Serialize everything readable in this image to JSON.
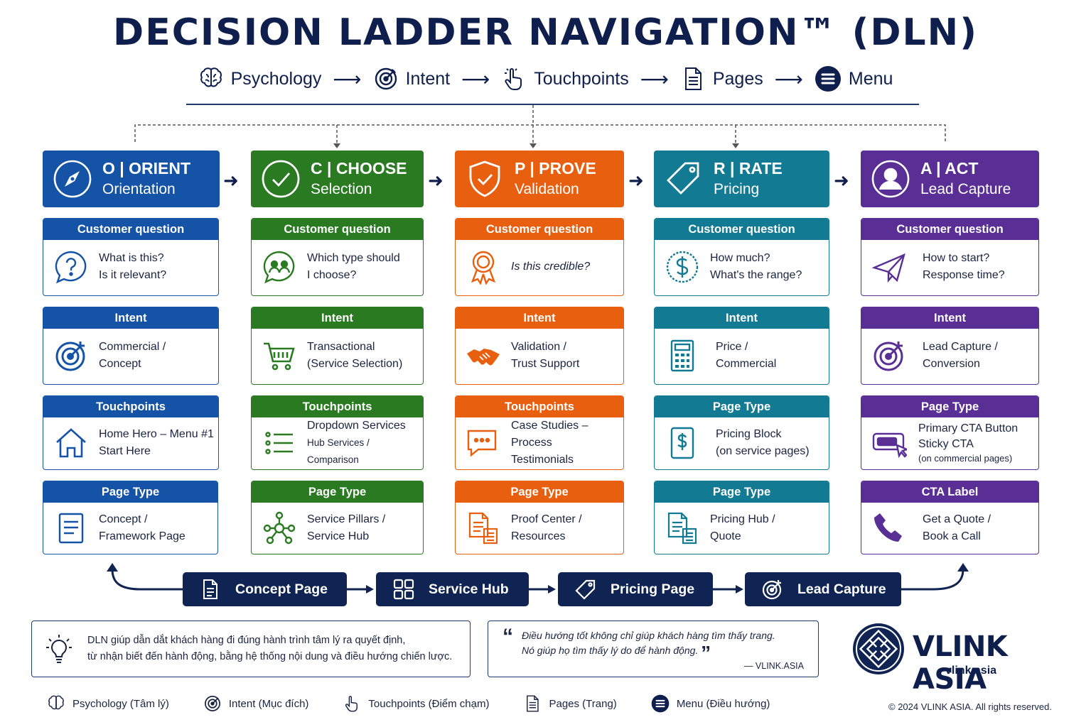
{
  "title": "DECISION LADDER NAVIGATION™ (DLN)",
  "flow": [
    {
      "label": "Psychology",
      "icon": "brain-icon"
    },
    {
      "label": "Intent",
      "icon": "target-icon"
    },
    {
      "label": "Touchpoints",
      "icon": "pointer-hand-icon"
    },
    {
      "label": "Pages",
      "icon": "document-icon"
    },
    {
      "label": "Menu",
      "icon": "menu-icon"
    }
  ],
  "colors": {
    "orient": "#1553a7",
    "choose": "#2a7a22",
    "prove": "#e8600f",
    "rate": "#137a94",
    "act": "#5a2f95",
    "navy": "#0f2452"
  },
  "stages": [
    {
      "t1": "O | ORIENT",
      "t2": "Orientation",
      "icon": "compass-icon",
      "cards": [
        {
          "h": "Customer question",
          "l1": "What is this?",
          "l2": "Is it relevant?",
          "icon": "question-bubble-icon"
        },
        {
          "h": "Intent",
          "l1": "Commercial /",
          "l2": "Concept",
          "icon": "target-icon"
        },
        {
          "h": "Touchpoints",
          "l1": "Home Hero – Menu #1",
          "l2": "Start Here",
          "icon": "home-icon"
        },
        {
          "h": "Page Type",
          "l1": "Concept /",
          "l2": "Framework Page",
          "icon": "document-icon"
        }
      ]
    },
    {
      "t1": "C | CHOOSE",
      "t2": "Selection",
      "icon": "check-circle-icon",
      "cards": [
        {
          "h": "Customer question",
          "l1": "Which type should",
          "l2": "I choose?",
          "icon": "people-bubble-icon"
        },
        {
          "h": "Intent",
          "l1": "Transactional",
          "l2": "(Service Selection)",
          "icon": "cart-icon"
        },
        {
          "h": "Touchpoints",
          "l1": "Dropdown Services",
          "l2": "Hub Services / Comparison",
          "icon": "list-icon"
        },
        {
          "h": "Page Type",
          "l1": "Service Pillars /",
          "l2": "Service Hub",
          "icon": "network-icon"
        }
      ]
    },
    {
      "t1": "P | PROVE",
      "t2": "Validation",
      "icon": "shield-check-icon",
      "cards": [
        {
          "h": "Customer question",
          "l1": "Is this credible?",
          "l2": "",
          "icon": "award-ribbon-icon"
        },
        {
          "h": "Intent",
          "l1": "Validation /",
          "l2": "Trust Support",
          "icon": "handshake-icon"
        },
        {
          "h": "Touchpoints",
          "l1": "Case Studies – Process",
          "l2": "Testimonials",
          "icon": "chat-bubble-icon"
        },
        {
          "h": "Page Type",
          "l1": "Proof Center /",
          "l2": "Resources",
          "icon": "documents-icon"
        }
      ]
    },
    {
      "t1": "R | RATE",
      "t2": "Pricing",
      "icon": "price-tag-icon",
      "cards": [
        {
          "h": "Customer question",
          "l1": "How much?",
          "l2": "What's the range?",
          "icon": "dollar-circle-icon"
        },
        {
          "h": "Intent",
          "l1": "Price /",
          "l2": "Commercial",
          "icon": "calculator-icon"
        },
        {
          "h": "Page Type",
          "l1": "Pricing Block",
          "l2": "(on service pages)",
          "icon": "dollar-document-icon"
        },
        {
          "h": "Page Type",
          "l1": "Pricing Hub /",
          "l2": "Quote",
          "icon": "documents-icon"
        }
      ]
    },
    {
      "t1": "A | ACT",
      "t2": "Lead Capture",
      "icon": "user-circle-icon",
      "cards": [
        {
          "h": "Customer question",
          "l1": "How to start?",
          "l2": "Response time?",
          "icon": "paper-plane-icon"
        },
        {
          "h": "Intent",
          "l1": "Lead Capture /",
          "l2": "Conversion",
          "icon": "target-icon"
        },
        {
          "h": "Page Type",
          "l1": "Primary CTA Button",
          "l2": "Sticky CTA",
          "l3": "(on commercial pages)",
          "icon": "cta-button-icon"
        },
        {
          "h": "CTA Label",
          "l1": "Get a Quote /",
          "l2": "Book a Call",
          "icon": "phone-icon"
        }
      ]
    }
  ],
  "pills": [
    {
      "label": "Concept Page",
      "icon": "document-icon"
    },
    {
      "label": "Service Hub",
      "icon": "grid-icon"
    },
    {
      "label": "Pricing Page",
      "icon": "price-tag-icon"
    },
    {
      "label": "Lead Capture",
      "icon": "target-icon"
    }
  ],
  "note": {
    "l1": "DLN giúp dẫn dắt khách hàng đi đúng hành trình tâm lý ra quyết định,",
    "l2": "từ nhận biết đến hành động, bằng hệ thống nội dung và điều hướng chiến lược."
  },
  "quote": {
    "open": "“",
    "l1": "Điều hướng tốt không chỉ giúp khách hàng tìm thấy trang.",
    "l2": "Nó giúp họ tìm thấy lý do để hành động.",
    "close": "”",
    "source": "— VLINK.ASIA"
  },
  "brand": {
    "name": "VLINK ASIA",
    "url": "vlink.asia"
  },
  "legend": [
    {
      "label": "Psychology (Tâm lý)",
      "icon": "brain-icon"
    },
    {
      "label": "Intent (Mục đích)",
      "icon": "target-icon"
    },
    {
      "label": "Touchpoints (Điểm chạm)",
      "icon": "pointer-hand-icon"
    },
    {
      "label": "Pages (Trang)",
      "icon": "document-icon"
    },
    {
      "label": "Menu (Điều hướng)",
      "icon": "menu-icon"
    }
  ],
  "copyright": "© 2024 VLINK ASIA. All rights reserved."
}
